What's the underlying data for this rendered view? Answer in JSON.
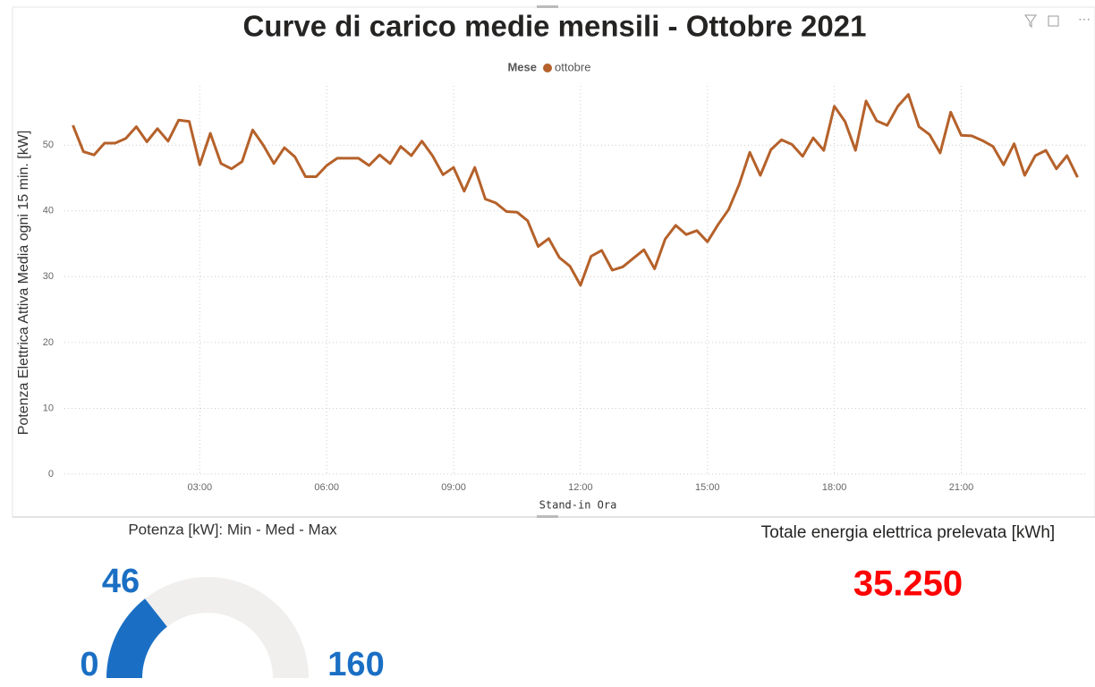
{
  "chart_data": [
    {
      "type": "line",
      "title": "Curve di carico medie mensili - Ottobre 2021",
      "legend_title": "Mese",
      "x_label": "Stand-in Ora",
      "y_label": "Potenza Elettrica Attiva Media ogni 15 min. [kW]",
      "x": [
        0,
        0.25,
        0.5,
        0.75,
        1,
        1.25,
        1.5,
        1.75,
        2,
        2.25,
        2.5,
        2.75,
        3,
        3.25,
        3.5,
        3.75,
        4,
        4.25,
        4.5,
        4.75,
        5,
        5.25,
        5.5,
        5.75,
        6,
        6.25,
        6.5,
        6.75,
        7,
        7.25,
        7.5,
        7.75,
        8,
        8.25,
        8.5,
        8.75,
        9,
        9.25,
        9.5,
        9.75,
        10,
        10.25,
        10.5,
        10.75,
        11,
        11.25,
        11.5,
        11.75,
        12,
        12.25,
        12.5,
        12.75,
        13,
        13.25,
        13.5,
        13.75,
        14,
        14.25,
        14.5,
        14.75,
        15,
        15.25,
        15.5,
        15.75,
        16,
        16.25,
        16.5,
        16.75,
        17,
        17.25,
        17.5,
        17.75,
        18,
        18.25,
        18.5,
        18.75,
        19,
        19.25,
        19.5,
        19.75,
        20,
        20.25,
        20.5,
        20.75,
        21,
        21.25,
        21.5,
        21.75,
        22,
        22.25,
        22.5,
        22.75,
        23,
        23.25,
        23.5,
        23.75
      ],
      "series": [
        {
          "name": "ottobre",
          "color": "#b5612a",
          "values": [
            53,
            49,
            48.5,
            50.3,
            50.3,
            51,
            52.8,
            50.5,
            52.5,
            50.6,
            53.8,
            53.6,
            47,
            51.8,
            47.2,
            46.4,
            47.5,
            52.3,
            50,
            47.2,
            49.6,
            48.2,
            45.2,
            45.2,
            46.9,
            48,
            48,
            48,
            46.9,
            48.5,
            47.2,
            49.8,
            48.4,
            50.6,
            48.4,
            45.5,
            46.6,
            43,
            46.6,
            41.8,
            41.2,
            39.9,
            39.8,
            38.5,
            34.6,
            35.8,
            32.9,
            31.6,
            28.7,
            33.1,
            34,
            31,
            31.5,
            32.8,
            34.1,
            31.2,
            35.7,
            37.8,
            36.4,
            37,
            35.3,
            37.9,
            40.2,
            44,
            48.9,
            45.4,
            49.3,
            50.8,
            50.1,
            48.3,
            51.1,
            49.2,
            55.9,
            53.6,
            49.2,
            56.7,
            53.7,
            53,
            55.9,
            57.7,
            52.8,
            51.6,
            48.8,
            55,
            51.5,
            51.4,
            50.7,
            49.8,
            47,
            50.2,
            45.4,
            48.4,
            49.2,
            46.4,
            48.4,
            45.1
          ]
        }
      ],
      "xlim": [
        -0.2,
        23.95
      ],
      "xticks": [
        {
          "value": 3,
          "label": "03:00"
        },
        {
          "value": 6,
          "label": "06:00"
        },
        {
          "value": 9,
          "label": "09:00"
        },
        {
          "value": 12,
          "label": "12:00"
        },
        {
          "value": 15,
          "label": "15:00"
        },
        {
          "value": 18,
          "label": "18:00"
        },
        {
          "value": 21,
          "label": "21:00"
        }
      ],
      "ylim": [
        0,
        59
      ],
      "yticks": [
        0,
        10,
        20,
        30,
        40,
        50
      ],
      "grid": true
    },
    {
      "type": "gauge",
      "title": "Potenza [kW]: Min - Med - Max",
      "value": 46,
      "min": 0,
      "max": 160,
      "color": "#1a6fc4",
      "track_color": "#f0efee"
    }
  ],
  "card": {
    "title": "Totale energia elettrica prelevata [kWh]",
    "value": "35.250",
    "color": "#ff0000"
  }
}
